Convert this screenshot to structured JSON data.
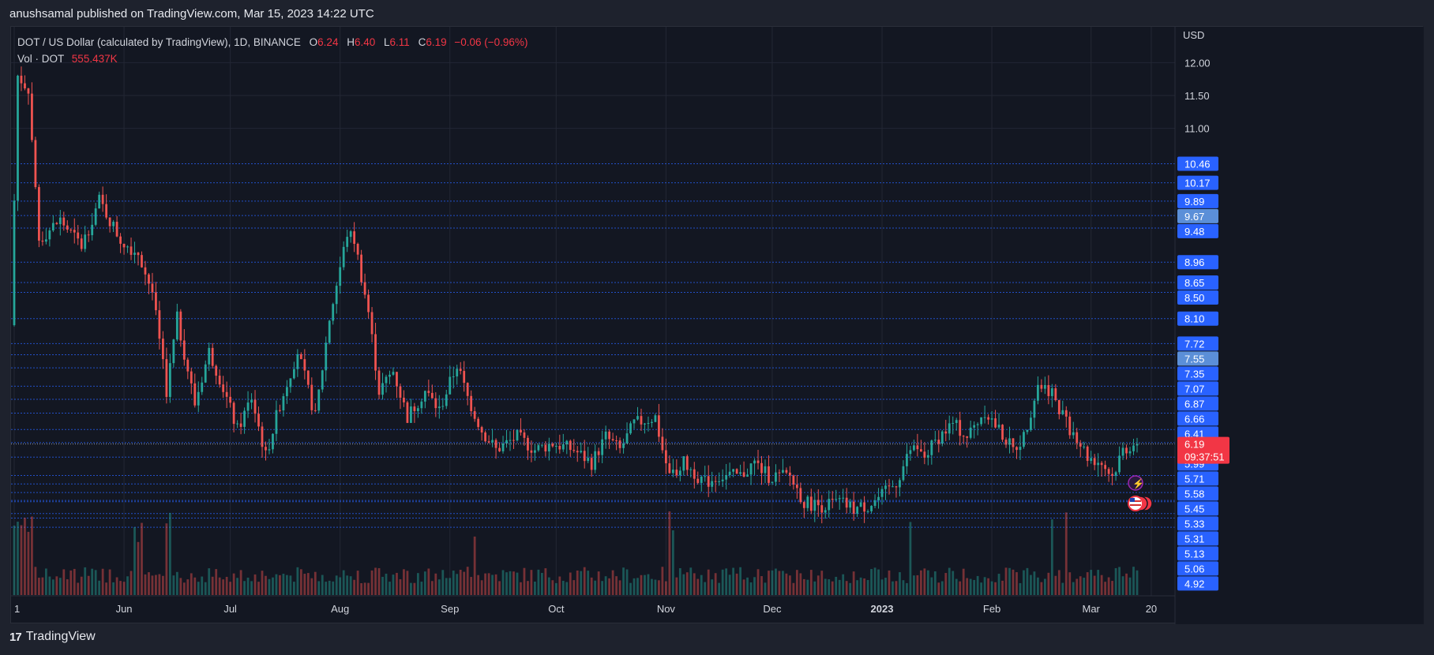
{
  "publisher": "anushsamal published on TradingView.com, Mar 15, 2023 14:22 UTC",
  "legend": {
    "symbol": "DOT / US Dollar (calculated by TradingView), 1D, BINANCE",
    "o_label": "O",
    "o": "6.24",
    "h_label": "H",
    "h": "6.40",
    "l_label": "L",
    "l": "6.11",
    "c_label": "C",
    "c": "6.19",
    "change": "−0.06 (−0.96%)",
    "vol_label": "Vol · DOT",
    "vol": "555.437K"
  },
  "footer": {
    "logo_mark": "17",
    "logo_text": "TradingView"
  },
  "colors": {
    "up": "#26a69a",
    "down": "#ef5350",
    "grid": "#232734",
    "hline": "#2962ff",
    "price_tag_bg": "#2962ff",
    "current_bg": "#f23645",
    "highlight_tag_bg": "#5b8fd8"
  },
  "chart_data": {
    "type": "candlestick",
    "title": "DOT / US Dollar (calculated by TradingView), 1D, BINANCE",
    "currency": "USD",
    "ylim": [
      4.85,
      12.45
    ],
    "price_scale_ticks": [
      "12.00",
      "11.50",
      "11.00"
    ],
    "horizontal_levels": [
      "10.46",
      "10.17",
      "9.89",
      "9.67",
      "9.48",
      "8.96",
      "8.65",
      "8.50",
      "8.10",
      "7.72",
      "7.55",
      "7.35",
      "7.07",
      "6.87",
      "6.66",
      "6.41",
      "6.21",
      "5.99",
      "5.71",
      "5.58",
      "5.45",
      "5.33",
      "5.31",
      "5.13",
      "5.06",
      "4.92"
    ],
    "highlighted_levels": [
      "9.67",
      "7.55"
    ],
    "current_price": "6.19",
    "countdown": "09:37:51",
    "x_labels": [
      "1",
      "Jun",
      "Jul",
      "Aug",
      "Sep",
      "Oct",
      "Nov",
      "Dec",
      "2023",
      "Feb",
      "Mar",
      "20"
    ],
    "x_label_days": [
      0,
      31,
      61,
      92,
      123,
      153,
      184,
      214,
      245,
      276,
      304,
      321
    ],
    "anchors": [
      [
        0,
        8.0
      ],
      [
        2,
        11.8
      ],
      [
        5,
        11.6
      ],
      [
        8,
        9.3
      ],
      [
        14,
        9.6
      ],
      [
        20,
        9.2
      ],
      [
        25,
        9.9
      ],
      [
        31,
        9.3
      ],
      [
        36,
        9.1
      ],
      [
        40,
        8.5
      ],
      [
        44,
        7.0
      ],
      [
        47,
        8.1
      ],
      [
        52,
        6.8
      ],
      [
        56,
        7.6
      ],
      [
        59,
        7.2
      ],
      [
        64,
        6.4
      ],
      [
        68,
        6.9
      ],
      [
        72,
        6.0
      ],
      [
        76,
        6.8
      ],
      [
        81,
        7.6
      ],
      [
        86,
        6.6
      ],
      [
        90,
        8.1
      ],
      [
        95,
        9.4
      ],
      [
        97,
        9.3
      ],
      [
        101,
        8.2
      ],
      [
        104,
        7.0
      ],
      [
        108,
        7.3
      ],
      [
        112,
        6.6
      ],
      [
        117,
        7.0
      ],
      [
        121,
        6.7
      ],
      [
        126,
        7.4
      ],
      [
        129,
        6.9
      ],
      [
        133,
        6.4
      ],
      [
        137,
        6.1
      ],
      [
        143,
        6.3
      ],
      [
        148,
        6.1
      ],
      [
        153,
        6.2
      ],
      [
        159,
        6.1
      ],
      [
        164,
        5.9
      ],
      [
        168,
        6.3
      ],
      [
        172,
        6.1
      ],
      [
        176,
        6.5
      ],
      [
        182,
        6.6
      ],
      [
        184,
        6.1
      ],
      [
        186,
        5.7
      ],
      [
        190,
        5.9
      ],
      [
        196,
        5.6
      ],
      [
        200,
        5.7
      ],
      [
        206,
        5.7
      ],
      [
        210,
        5.9
      ],
      [
        214,
        5.7
      ],
      [
        220,
        5.7
      ],
      [
        224,
        5.3
      ],
      [
        229,
        5.25
      ],
      [
        234,
        5.3
      ],
      [
        238,
        5.2
      ],
      [
        242,
        5.25
      ],
      [
        246,
        5.4
      ],
      [
        250,
        5.6
      ],
      [
        254,
        6.1
      ],
      [
        258,
        6.0
      ],
      [
        262,
        6.3
      ],
      [
        266,
        6.5
      ],
      [
        270,
        6.3
      ],
      [
        275,
        6.7
      ],
      [
        279,
        6.4
      ],
      [
        283,
        6.1
      ],
      [
        286,
        6.3
      ],
      [
        290,
        7.1
      ],
      [
        294,
        7.0
      ],
      [
        298,
        6.5
      ],
      [
        301,
        6.3
      ],
      [
        304,
        6.0
      ],
      [
        308,
        5.9
      ],
      [
        311,
        5.7
      ],
      [
        314,
        6.1
      ],
      [
        317,
        6.19
      ]
    ],
    "volume_note": "volume bars shown at bottom of pane, colored by candle direction"
  }
}
